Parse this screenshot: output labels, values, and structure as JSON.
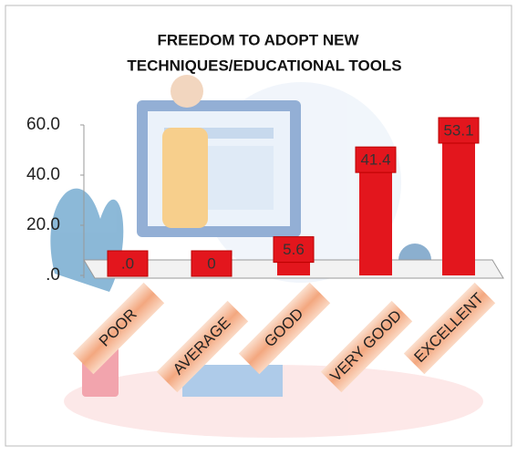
{
  "chart_data": {
    "type": "bar",
    "title": [
      "FREEDOM TO ADOPT NEW",
      "TECHNIQUES/EDUCATIONAL TOOLS"
    ],
    "categories": [
      "POOR",
      "AVERAGE",
      "GOOD",
      "VERY GOOD",
      "EXCELLENT"
    ],
    "values": [
      0,
      0,
      5.6,
      41.4,
      53.1
    ],
    "value_labels": [
      ".0",
      "0",
      "5.6",
      "41.4",
      "53.1"
    ],
    "color": "#e3161d",
    "ylim": [
      0,
      60
    ],
    "yticks": [
      {
        "value": 0,
        "label": ".0"
      },
      {
        "value": 20,
        "label": "20.0"
      },
      {
        "value": 40,
        "label": "40.0"
      },
      {
        "value": 60,
        "label": "60.0"
      }
    ]
  }
}
